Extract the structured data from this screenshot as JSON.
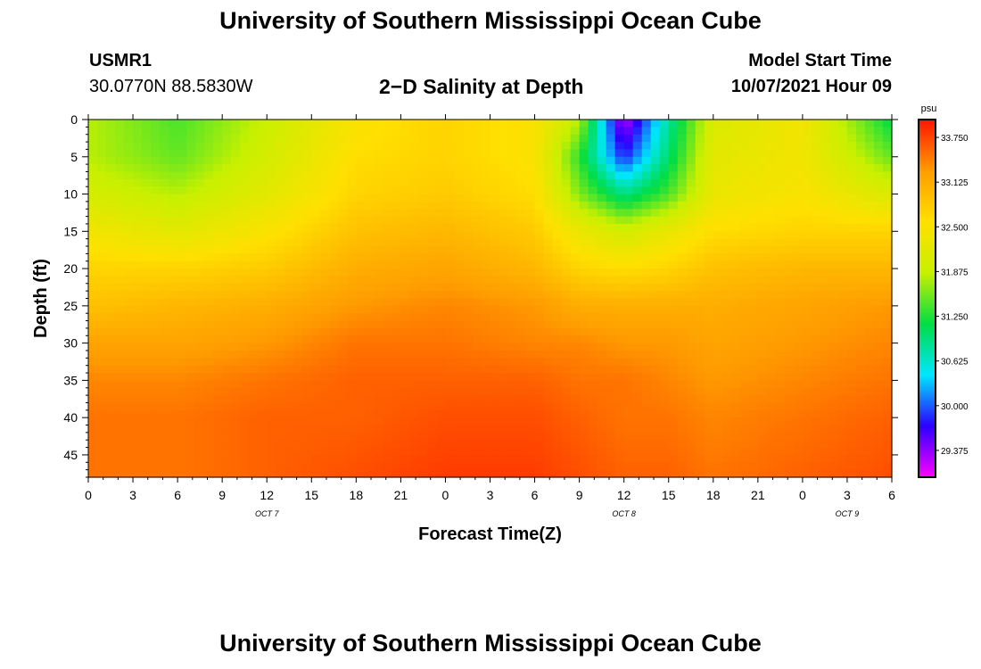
{
  "header": {
    "title": "University of Southern Mississippi Ocean Cube",
    "footer_title": "University of Southern Mississippi Ocean Cube",
    "station_id": "USMR1",
    "station_coords": "30.0770N  88.5830W",
    "subtitle": "2−D Salinity at Depth",
    "start_label": "Model Start Time",
    "start_date": "10/07/2021 Hour 09"
  },
  "chart_data": {
    "type": "heatmap",
    "title": "2−D Salinity at Depth",
    "xlabel": "Forecast Time(Z)",
    "ylabel": "Depth (ft)",
    "x_tick_labels": [
      "0",
      "3",
      "6",
      "9",
      "12",
      "15",
      "18",
      "21",
      "0",
      "3",
      "6",
      "9",
      "12",
      "15",
      "18",
      "21",
      "0",
      "3",
      "6"
    ],
    "x_range_hours": [
      0,
      54
    ],
    "date_labels": [
      {
        "label": "OCT 7",
        "hour": 12
      },
      {
        "label": "OCT 8",
        "hour": 36
      },
      {
        "label": "OCT 9",
        "hour": 51
      }
    ],
    "y_ticks": [
      0,
      5,
      10,
      15,
      20,
      25,
      30,
      35,
      40,
      45
    ],
    "ylim": [
      48,
      0
    ],
    "colorbar": {
      "unit": "psu",
      "min": 29.0,
      "max": 34.0,
      "tick_labels": [
        "33.750",
        "33.125",
        "32.500",
        "31.875",
        "31.250",
        "30.625",
        "30.000",
        "29.375"
      ],
      "tick_values": [
        33.75,
        33.125,
        32.5,
        31.875,
        31.25,
        30.625,
        30.0,
        29.375
      ],
      "colors": [
        "#ff00ff",
        "#2b00ff",
        "#00e6ff",
        "#00dd44",
        "#c8f000",
        "#ffe000",
        "#ff9c00",
        "#ff1500"
      ]
    },
    "depths_ft": [
      0,
      5,
      10,
      15,
      20,
      25,
      30,
      35,
      40,
      48
    ],
    "times_h": [
      0,
      6,
      12,
      18,
      24,
      30,
      33,
      36,
      39,
      42,
      48,
      54
    ],
    "salinity_psu": [
      [
        31.8,
        31.4,
        31.9,
        32.5,
        32.7,
        32.5,
        31.8,
        29.2,
        30.8,
        32.1,
        32.4,
        31.1
      ],
      [
        31.8,
        31.5,
        32.0,
        32.6,
        32.7,
        32.5,
        31.3,
        29.8,
        31.0,
        32.2,
        32.4,
        31.5
      ],
      [
        32.0,
        31.8,
        32.2,
        32.7,
        32.8,
        32.6,
        31.6,
        30.9,
        31.4,
        32.3,
        32.5,
        32.1
      ],
      [
        32.4,
        32.2,
        32.5,
        32.9,
        33.0,
        32.8,
        32.3,
        32.0,
        32.3,
        32.6,
        32.7,
        32.7
      ],
      [
        32.7,
        32.7,
        32.8,
        33.1,
        33.2,
        33.0,
        32.7,
        32.6,
        32.7,
        32.9,
        33.0,
        33.0
      ],
      [
        32.9,
        33.0,
        33.1,
        33.3,
        33.4,
        33.3,
        33.1,
        33.1,
        33.1,
        33.1,
        33.2,
        33.3
      ],
      [
        33.2,
        33.2,
        33.3,
        33.5,
        33.5,
        33.4,
        33.4,
        33.3,
        33.3,
        33.2,
        33.3,
        33.4
      ],
      [
        33.4,
        33.4,
        33.5,
        33.6,
        33.6,
        33.6,
        33.5,
        33.5,
        33.4,
        33.3,
        33.4,
        33.5
      ],
      [
        33.5,
        33.5,
        33.6,
        33.6,
        33.7,
        33.7,
        33.6,
        33.5,
        33.5,
        33.4,
        33.5,
        33.6
      ],
      [
        33.5,
        33.5,
        33.6,
        33.7,
        33.8,
        33.8,
        33.7,
        33.6,
        33.6,
        33.5,
        33.6,
        33.7
      ]
    ]
  }
}
